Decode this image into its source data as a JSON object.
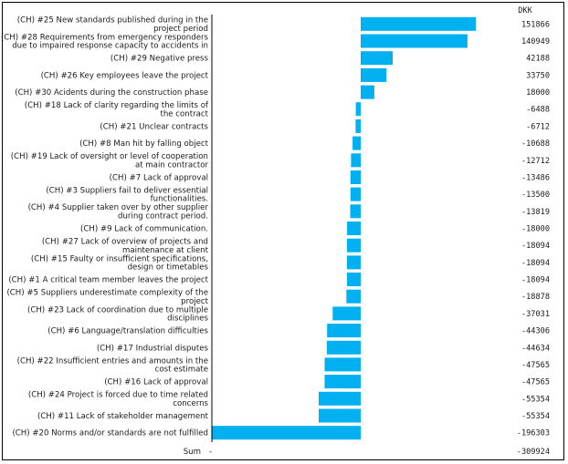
{
  "chart_data": {
    "type": "bar",
    "orientation": "horizontal",
    "value_header": "DKK",
    "bar_color": "#00b0f0",
    "categories": [
      [
        "(CH) #25 New standards published during in the",
        "project period"
      ],
      [
        "(CH) #28 Requirements from emergency responders",
        "due to impaired response capacity to accidents in"
      ],
      [
        "(CH) #29 Negative press"
      ],
      [
        "(CH) #26 Key employees leave the project"
      ],
      [
        "(CH) #30 Acidents during the construction phase"
      ],
      [
        "(CH) #18 Lack of clarity regarding the limits of",
        "the contract"
      ],
      [
        "(CH) #21 Unclear contracts"
      ],
      [
        "(CH) #8 Man hit by falling object"
      ],
      [
        "(CH) #19 Lack of oversight or level of cooperation",
        "at main contractor"
      ],
      [
        "(CH) #7 Lack of approval"
      ],
      [
        "(CH) #3 Suppliers fail to deliver essential",
        "functionalities."
      ],
      [
        "(CH) #4 Supplier taken over by other supplier",
        "during contract period."
      ],
      [
        "(CH) #9 Lack of communication."
      ],
      [
        "(CH) #27 Lack of overview of projects and",
        "maintenance at client"
      ],
      [
        "(CH) #15 Faulty or insufficient specifications,",
        "design or timetables"
      ],
      [
        "(CH) #1 A critical team member leaves the project"
      ],
      [
        "(CH) #5 Suppliers underestimate complexity of the",
        "project"
      ],
      [
        "(CH) #23 Lack of coordination due to multiple",
        "disciplines"
      ],
      [
        "(CH) #6 Language/translation difficulties"
      ],
      [
        "(CH) #17 Industrial disputes"
      ],
      [
        "(CH) #22 Insufficient entries and amounts in the",
        "cost estimate"
      ],
      [
        "(CH) #16 Lack of approval"
      ],
      [
        "(CH) #24 Project is forced due to time related",
        "concerns"
      ],
      [
        "(CH) #11 Lack of stakeholder management"
      ],
      [
        "(CH) #20 Norms and/or standards are not fulfilled"
      ]
    ],
    "values": [
      151866,
      140949,
      42188,
      33750,
      18000,
      -6488,
      -6712,
      -10688,
      -12712,
      -13486,
      -13500,
      -13819,
      -18000,
      -18094,
      -18094,
      -18094,
      -18878,
      -37031,
      -44306,
      -44634,
      -47565,
      -47565,
      -55354,
      -55354,
      -196303
    ],
    "sum_label": "Sum",
    "sum_marker": "-",
    "sum_value": -309924
  }
}
